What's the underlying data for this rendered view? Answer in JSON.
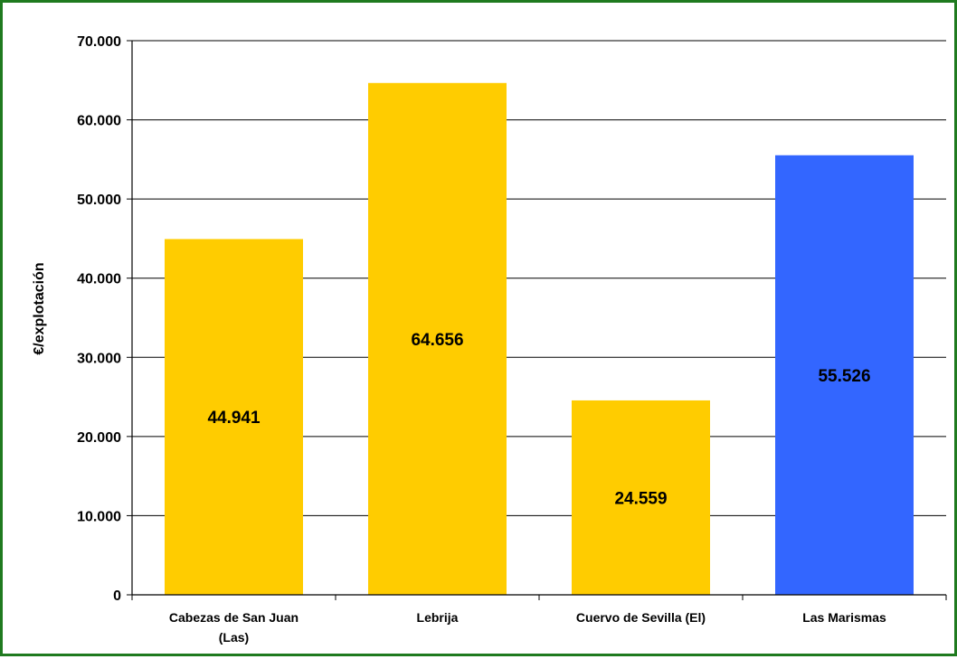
{
  "chart_data": {
    "type": "bar",
    "title": "",
    "xlabel": "",
    "ylabel": "€/explotación",
    "ylim": [
      0,
      70000
    ],
    "ytick_values": [
      0,
      10000,
      20000,
      30000,
      40000,
      50000,
      60000,
      70000
    ],
    "ytick_labels": [
      "0",
      "10.000",
      "20.000",
      "30.000",
      "40.000",
      "50.000",
      "60.000",
      "70.000"
    ],
    "grid": true,
    "legend": "none",
    "categories": [
      [
        "Cabezas de San Juan",
        "(Las)"
      ],
      [
        "Lebrija"
      ],
      [
        "Cuervo de Sevilla (El)"
      ],
      [
        "Las Marismas"
      ]
    ],
    "values": [
      44941,
      64656,
      24559,
      55526
    ],
    "data_labels": [
      "44.941",
      "64.656",
      "24.559",
      "55.526"
    ],
    "colors": [
      "#FFCC00",
      "#FFCC00",
      "#FFCC00",
      "#3366FF"
    ]
  }
}
